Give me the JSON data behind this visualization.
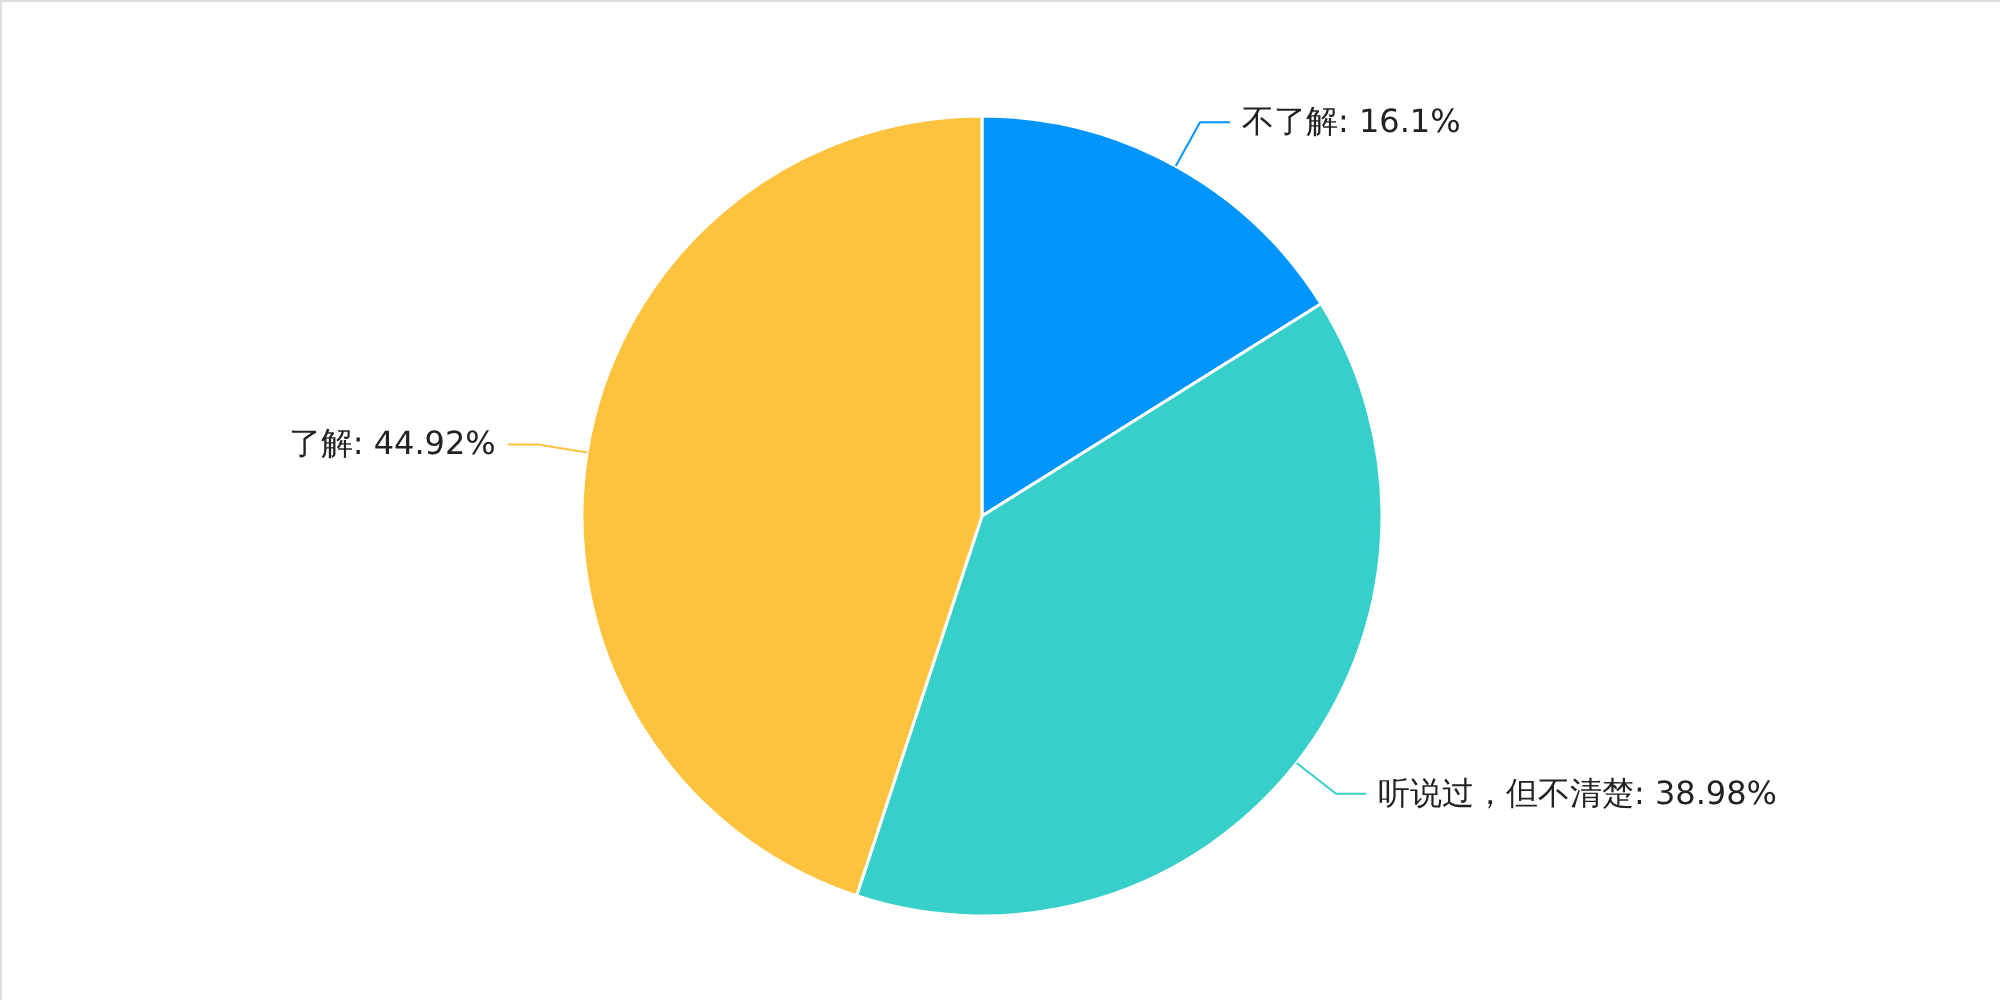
{
  "chart_data": {
    "type": "pie",
    "categories": [
      "不了解",
      "听说过，但不清楚",
      "了解"
    ],
    "values": [
      16.1,
      38.98,
      44.92
    ],
    "colors": [
      "#0395fe",
      "#36cfc9",
      "#fec33e"
    ],
    "value_labels": [
      "16.1%",
      "38.98%",
      "44.92%"
    ]
  }
}
